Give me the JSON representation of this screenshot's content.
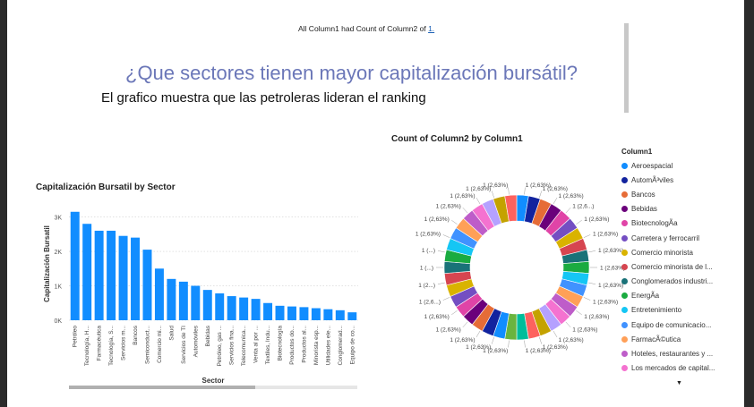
{
  "header": {
    "note_prefix": "All Column1 had Count of Column2 of",
    "note_link": "1.",
    "title": "¿Que sectores tienen mayor capitalización bursátil?",
    "subtitle": "El grafico muestra que las petroleras lideran el ranking"
  },
  "chart_data": [
    {
      "type": "bar",
      "title": "Capitalización Bursatil by Sector",
      "xlabel": "Sector",
      "ylabel": "Capitalización Bursatil",
      "ylim": [
        0,
        3300
      ],
      "yticks": [
        "0K",
        "1K",
        "2K",
        "3K"
      ],
      "color": "#118dff",
      "grid": "horizontal dotted",
      "categories": [
        "Petróleo",
        "Tecnología, H...",
        "Farmacéutica",
        "Tecnología, S...",
        "Servicios m...",
        "Bancos",
        "Semiconduct...",
        "Comercio mi...",
        "Salud",
        "Servicios de TI",
        "Automóviles",
        "Bebidas",
        "Petróleo, gas ...",
        "Servicios fina...",
        "Telecomunica...",
        "Venta al por ...",
        "Textiles, Indu...",
        "Biotecnología",
        "Productos do...",
        "Productos al...",
        "Minorista esp...",
        "Utilidades ele...",
        "Conglomerad...",
        "Equipo de co..."
      ],
      "values": [
        3150,
        2800,
        2600,
        2600,
        2450,
        2400,
        2050,
        1500,
        1200,
        1120,
        1000,
        880,
        780,
        700,
        660,
        620,
        500,
        420,
        400,
        380,
        350,
        320,
        290,
        230
      ]
    },
    {
      "type": "pie",
      "variant": "donut",
      "title": "Count of Column2 by Column1",
      "slice_value": 1,
      "slice_label": "1 (2,63%)",
      "slice_count": 38,
      "colors": [
        "#118dff",
        "#12239e",
        "#e66c37",
        "#6b007b",
        "#e044a7",
        "#744ec2",
        "#d9b300",
        "#d64550",
        "#197278",
        "#1aab40",
        "#15c6f4",
        "#4092ff",
        "#ffa058",
        "#be5dc9",
        "#f472d0",
        "#b5a1ff",
        "#c4a200",
        "#fd625e",
        "#00bd9b",
        "#6ab43e"
      ],
      "visible_labels": [
        "1 (2,63%)",
        "1 (2,63%)",
        "1 (2,63%)",
        "1 (2,6...)",
        "1 (2,63%)",
        "1 (2,63%)",
        "1 (2,63%)",
        "1 (2,63%)",
        "1 (2,63%)",
        "1 (2,63%)",
        "1 (2,63%)",
        "1 (2,63%)",
        "1 (2,63%)",
        "1 (2,63%)",
        "1 (2,63%)",
        "1 (2,63%)",
        "1 (2,63%)",
        "1 (2,63%)",
        "1 (2,63%)",
        "1 (2,63%)",
        "1 (2,6...)",
        "1 (2...)",
        "1 (...)",
        "1 (...)",
        "1 (2,63%)",
        "1 (2,63%)",
        "1 (2,63%)",
        "1 (2,63%)",
        "1 (2,63%)",
        "1 (2,63%)"
      ],
      "legend": {
        "title": "Column1",
        "placement": "right",
        "items": [
          "Aeroespacial",
          "AutomÃ³viles",
          "Bancos",
          "Bebidas",
          "BiotecnologÃ­a",
          "Carretera y ferrocarril",
          "Comercio minorista",
          "Comercio minorista de l...",
          "Conglomerados industri...",
          "EnergÃ­a",
          "Entretenimiento",
          "Equipo de comunicacio...",
          "FarmacÃ©utica",
          "Hoteles, restaurantes y ...",
          "Los mercados de capital..."
        ]
      }
    }
  ]
}
